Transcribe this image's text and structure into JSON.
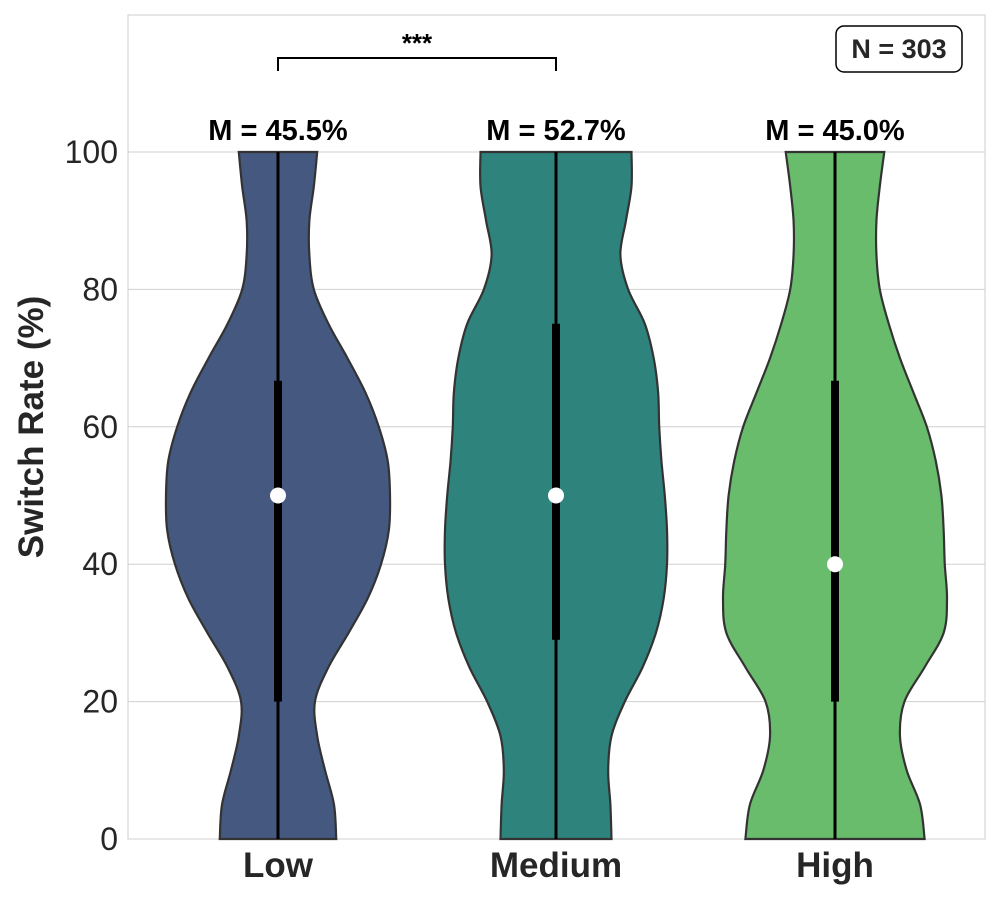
{
  "chart_data": {
    "type": "violin",
    "title": "",
    "xlabel": "",
    "ylabel": "Switch Rate (%)",
    "ylim": [
      0,
      120
    ],
    "yticks": [
      0,
      20,
      40,
      60,
      80,
      100
    ],
    "grid": true,
    "categories": [
      "Low",
      "Medium",
      "High"
    ],
    "colors": [
      "#455880",
      "#2e837d",
      "#69bc6c"
    ],
    "outline_color": "#333333",
    "mean_labels": [
      "M = 45.5%",
      "M = 52.7%",
      "M = 45.0%"
    ],
    "means": [
      45.5,
      52.7,
      45.0
    ],
    "medians": [
      50,
      50,
      40
    ],
    "q1": [
      20,
      29,
      20
    ],
    "q3": [
      66.7,
      75,
      66.7
    ],
    "whisker_min": [
      0,
      0,
      0
    ],
    "whisker_max": [
      100,
      100,
      100
    ],
    "density_profiles": [
      {
        "y": [
          0,
          5,
          10,
          15,
          20,
          25,
          30,
          35,
          40,
          45,
          50,
          55,
          60,
          65,
          70,
          75,
          80,
          85,
          90,
          95,
          100
        ],
        "w": [
          0.52,
          0.5,
          0.42,
          0.35,
          0.33,
          0.45,
          0.63,
          0.8,
          0.92,
          0.99,
          1.0,
          0.98,
          0.9,
          0.78,
          0.62,
          0.45,
          0.32,
          0.28,
          0.28,
          0.32,
          0.35
        ]
      },
      {
        "y": [
          0,
          5,
          10,
          15,
          20,
          25,
          30,
          35,
          40,
          45,
          50,
          55,
          60,
          65,
          70,
          75,
          80,
          85,
          90,
          95,
          100
        ],
        "w": [
          0.5,
          0.49,
          0.47,
          0.5,
          0.62,
          0.78,
          0.9,
          0.97,
          1.0,
          1.0,
          0.98,
          0.95,
          0.93,
          0.92,
          0.88,
          0.8,
          0.65,
          0.58,
          0.63,
          0.68,
          0.68
        ]
      },
      {
        "y": [
          0,
          5,
          10,
          15,
          20,
          25,
          30,
          35,
          40,
          45,
          50,
          55,
          60,
          65,
          70,
          75,
          80,
          85,
          90,
          95,
          100
        ],
        "w": [
          0.8,
          0.76,
          0.64,
          0.58,
          0.62,
          0.8,
          0.97,
          1.0,
          0.98,
          0.97,
          0.95,
          0.9,
          0.82,
          0.7,
          0.58,
          0.48,
          0.4,
          0.37,
          0.37,
          0.4,
          0.44
        ]
      }
    ],
    "significance": {
      "from": "Low",
      "to": "Medium",
      "label": "***"
    },
    "annotation": "N = 303"
  }
}
